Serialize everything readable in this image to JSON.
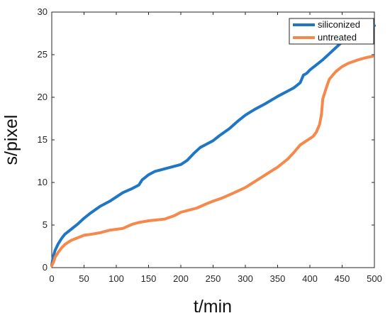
{
  "chart_data": {
    "type": "line",
    "title": "",
    "xlabel": "t/min",
    "ylabel": "s/pixel",
    "xlim": [
      0,
      500
    ],
    "ylim": [
      0,
      30
    ],
    "x_ticks": [
      0,
      50,
      100,
      150,
      200,
      250,
      300,
      350,
      400,
      450,
      500
    ],
    "y_ticks": [
      0,
      5,
      10,
      15,
      20,
      25,
      30
    ],
    "grid": false,
    "legend_position": "top-right",
    "series": [
      {
        "name": "siliconized",
        "color": "#1f77c4",
        "x": [
          0,
          2,
          5,
          10,
          15,
          20,
          30,
          40,
          50,
          60,
          75,
          90,
          100,
          110,
          125,
          135,
          140,
          150,
          160,
          175,
          190,
          200,
          210,
          220,
          230,
          240,
          250,
          260,
          275,
          290,
          300,
          315,
          330,
          350,
          365,
          375,
          385,
          390,
          395,
          400,
          410,
          420,
          430,
          440,
          450,
          460,
          475,
          490,
          500
        ],
        "y": [
          0.3,
          1.2,
          2.0,
          2.8,
          3.4,
          3.9,
          4.5,
          5.1,
          5.8,
          6.4,
          7.2,
          7.8,
          8.3,
          8.8,
          9.3,
          9.7,
          10.3,
          10.9,
          11.3,
          11.6,
          11.9,
          12.1,
          12.6,
          13.4,
          14.1,
          14.5,
          14.9,
          15.5,
          16.3,
          17.3,
          17.9,
          18.6,
          19.2,
          20.1,
          20.7,
          21.1,
          21.7,
          22.6,
          22.8,
          23.2,
          23.8,
          24.4,
          25.1,
          25.8,
          26.5,
          27.0,
          27.6,
          28.0,
          28.4
        ]
      },
      {
        "name": "untreated",
        "color": "#f5884a",
        "x": [
          0,
          3,
          5,
          10,
          15,
          20,
          30,
          40,
          50,
          60,
          75,
          90,
          100,
          110,
          125,
          135,
          150,
          175,
          190,
          200,
          215,
          225,
          240,
          250,
          265,
          280,
          300,
          325,
          350,
          365,
          375,
          385,
          395,
          405,
          410,
          415,
          418,
          420,
          425,
          430,
          440,
          450,
          460,
          475,
          490,
          497
        ],
        "y": [
          0.2,
          0.7,
          1.2,
          1.8,
          2.3,
          2.7,
          3.2,
          3.5,
          3.8,
          3.9,
          4.1,
          4.4,
          4.5,
          4.6,
          5.1,
          5.3,
          5.5,
          5.7,
          6.1,
          6.5,
          6.8,
          7.0,
          7.5,
          7.8,
          8.2,
          8.7,
          9.4,
          10.6,
          11.8,
          12.7,
          13.5,
          14.4,
          14.9,
          15.4,
          15.9,
          16.8,
          18.0,
          19.8,
          21.0,
          22.1,
          23.0,
          23.6,
          24.0,
          24.4,
          24.7,
          24.8
        ]
      }
    ]
  }
}
